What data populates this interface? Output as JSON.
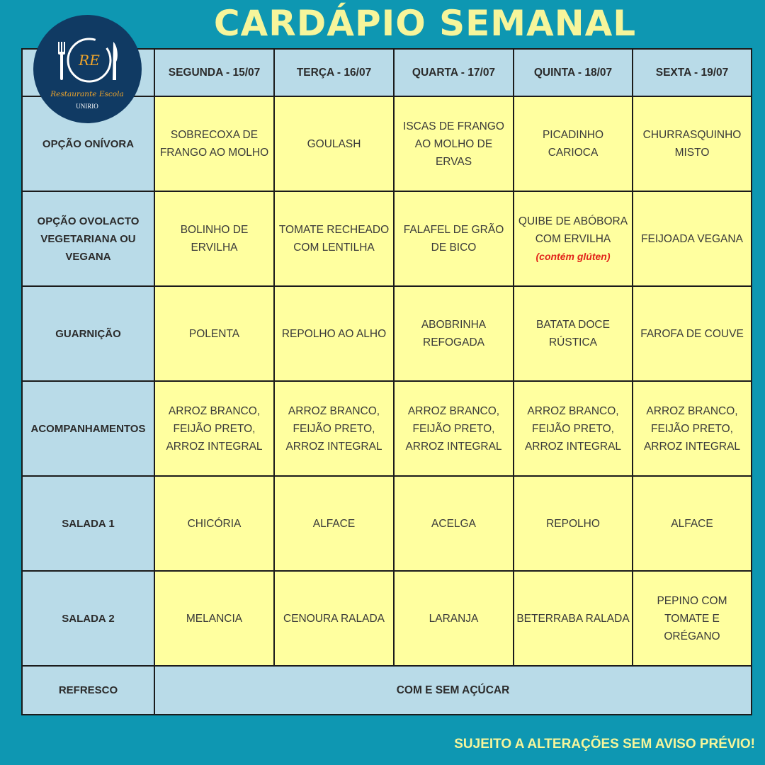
{
  "title": "CARDÁPIO SEMANAL",
  "logo": {
    "initials": "RE",
    "name": "Restaurante Escola",
    "org": "UNIRIO"
  },
  "colors": {
    "background": "#0e97b2",
    "header": "#b9dbe8",
    "cell": "#ffff9f",
    "title": "#f6f59b",
    "note": "#e2231a"
  },
  "days": [
    "SEGUNDA - 15/07",
    "TERÇA - 16/07",
    "QUARTA - 17/07",
    "QUINTA - 18/07",
    "SEXTA - 19/07"
  ],
  "rows": [
    {
      "label": "OPÇÃO ONÍVORA",
      "cells": [
        "SOBRECOXA DE FRANGO AO MOLHO",
        "GOULASH",
        "ISCAS DE FRANGO AO MOLHO DE ERVAS",
        "PICADINHO CARIOCA",
        "CHURRASQUINHO MISTO"
      ]
    },
    {
      "label": "OPÇÃO OVOLACTO VEGETARIANA OU VEGANA",
      "cells": [
        "BOLINHO DE ERVILHA",
        "TOMATE RECHEADO COM LENTILHA",
        "FALAFEL DE GRÃO DE BICO",
        "QUIBE DE ABÓBORA COM ERVILHA",
        "FEIJOADA VEGANA"
      ],
      "notes": [
        null,
        null,
        null,
        "(contém glúten)",
        null
      ]
    },
    {
      "label": "GUARNIÇÃO",
      "cells": [
        "POLENTA",
        "REPOLHO AO ALHO",
        "ABOBRINHA REFOGADA",
        "BATATA DOCE RÚSTICA",
        "FAROFA DE COUVE"
      ]
    },
    {
      "label": "ACOMPANHAMENTOS",
      "cells": [
        "ARROZ BRANCO, FEIJÃO PRETO, ARROZ INTEGRAL",
        "ARROZ BRANCO, FEIJÃO PRETO, ARROZ INTEGRAL",
        "ARROZ BRANCO, FEIJÃO PRETO, ARROZ INTEGRAL",
        "ARROZ BRANCO, FEIJÃO PRETO, ARROZ INTEGRAL",
        "ARROZ BRANCO, FEIJÃO PRETO, ARROZ INTEGRAL"
      ]
    },
    {
      "label": "SALADA 1",
      "cells": [
        "CHICÓRIA",
        "ALFACE",
        "ACELGA",
        "REPOLHO",
        "ALFACE"
      ]
    },
    {
      "label": "SALADA 2",
      "cells": [
        "MELANCIA",
        "CENOURA RALADA",
        "LARANJA",
        "BETERRABA RALADA",
        "PEPINO COM TOMATE E ORÉGANO"
      ]
    }
  ],
  "refresco": {
    "label": "REFRESCO",
    "value": "COM E SEM AÇÚCAR"
  },
  "footer": "SUJEITO A ALTERAÇÕES SEM AVISO PRÉVIO!"
}
